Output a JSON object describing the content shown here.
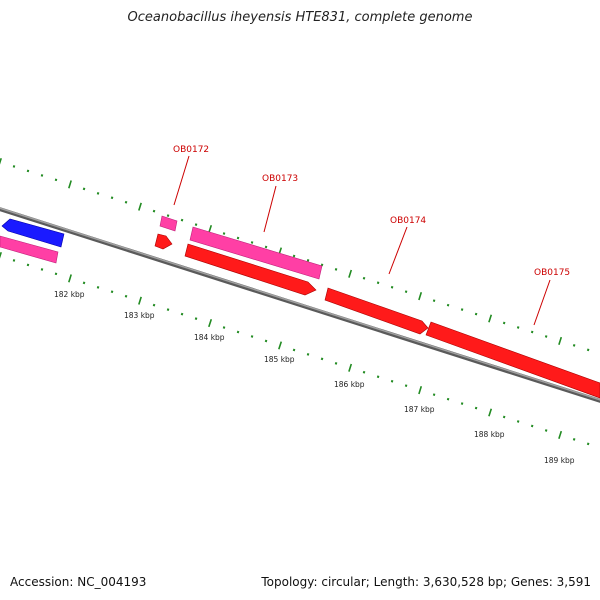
{
  "title": "Oceanobacillus iheyensis HTE831, complete genome",
  "footer": {
    "accession": "Accession: NC_004193",
    "stats": "Topology: circular; Length: 3,630,528 bp; Genes: 3,591"
  },
  "colors": {
    "backbone": "#808080",
    "tick": "#228b22",
    "label": "#cc0000",
    "gene_forward": "#ff1a1a",
    "gene_reverse": "#1a1aff",
    "cds_pink": "#ff3fa5"
  },
  "axis": {
    "ticks": [
      {
        "label": "182 kbp"
      },
      {
        "label": "183 kbp"
      },
      {
        "label": "184 kbp"
      },
      {
        "label": "185 kbp"
      },
      {
        "label": "186 kbp"
      },
      {
        "label": "187 kbp"
      },
      {
        "label": "188 kbp"
      },
      {
        "label": "189 kbp"
      }
    ]
  },
  "genes": [
    {
      "name": "OB0172",
      "labeled": true
    },
    {
      "name": "OB0173",
      "labeled": true
    },
    {
      "name": "OB0174",
      "labeled": true
    },
    {
      "name": "OB0175",
      "labeled": true
    }
  ]
}
